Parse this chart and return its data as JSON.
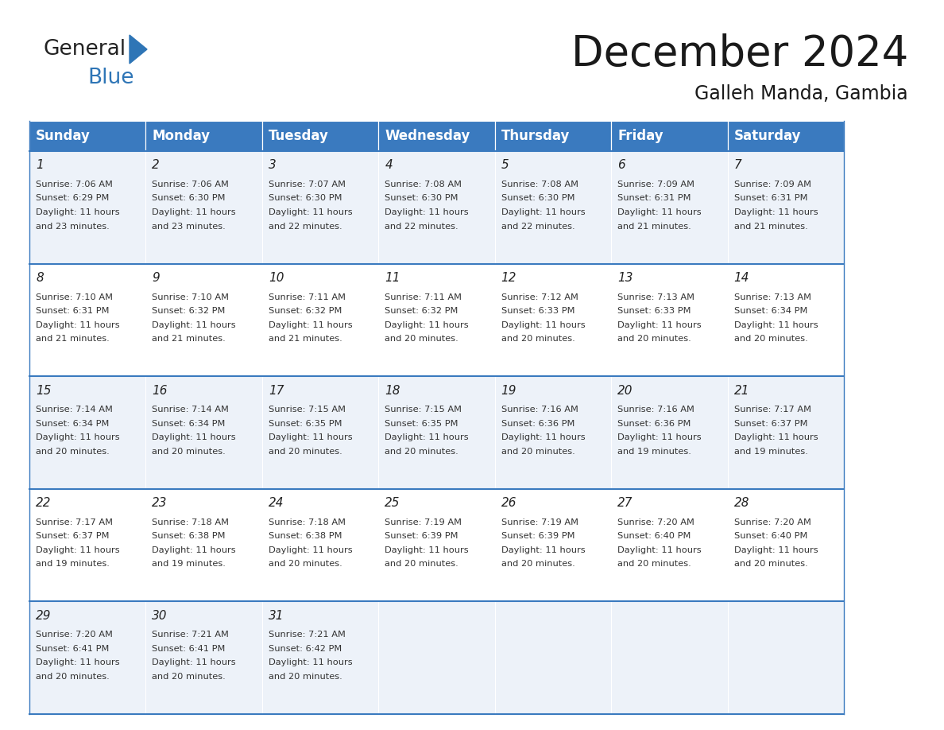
{
  "title": "December 2024",
  "subtitle": "Galleh Manda, Gambia",
  "header_color": "#3a7abf",
  "header_text_color": "#ffffff",
  "cell_bg_even": "#edf2f9",
  "cell_bg_odd": "#ffffff",
  "border_color": "#3a7abf",
  "text_color": "#333333",
  "day_names": [
    "Sunday",
    "Monday",
    "Tuesday",
    "Wednesday",
    "Thursday",
    "Friday",
    "Saturday"
  ],
  "weeks": [
    [
      {
        "day": 1,
        "sunrise": "7:06 AM",
        "sunset": "6:29 PM",
        "daylight": "11 hours and 23 minutes."
      },
      {
        "day": 2,
        "sunrise": "7:06 AM",
        "sunset": "6:30 PM",
        "daylight": "11 hours and 23 minutes."
      },
      {
        "day": 3,
        "sunrise": "7:07 AM",
        "sunset": "6:30 PM",
        "daylight": "11 hours and 22 minutes."
      },
      {
        "day": 4,
        "sunrise": "7:08 AM",
        "sunset": "6:30 PM",
        "daylight": "11 hours and 22 minutes."
      },
      {
        "day": 5,
        "sunrise": "7:08 AM",
        "sunset": "6:30 PM",
        "daylight": "11 hours and 22 minutes."
      },
      {
        "day": 6,
        "sunrise": "7:09 AM",
        "sunset": "6:31 PM",
        "daylight": "11 hours and 21 minutes."
      },
      {
        "day": 7,
        "sunrise": "7:09 AM",
        "sunset": "6:31 PM",
        "daylight": "11 hours and 21 minutes."
      }
    ],
    [
      {
        "day": 8,
        "sunrise": "7:10 AM",
        "sunset": "6:31 PM",
        "daylight": "11 hours and 21 minutes."
      },
      {
        "day": 9,
        "sunrise": "7:10 AM",
        "sunset": "6:32 PM",
        "daylight": "11 hours and 21 minutes."
      },
      {
        "day": 10,
        "sunrise": "7:11 AM",
        "sunset": "6:32 PM",
        "daylight": "11 hours and 21 minutes."
      },
      {
        "day": 11,
        "sunrise": "7:11 AM",
        "sunset": "6:32 PM",
        "daylight": "11 hours and 20 minutes."
      },
      {
        "day": 12,
        "sunrise": "7:12 AM",
        "sunset": "6:33 PM",
        "daylight": "11 hours and 20 minutes."
      },
      {
        "day": 13,
        "sunrise": "7:13 AM",
        "sunset": "6:33 PM",
        "daylight": "11 hours and 20 minutes."
      },
      {
        "day": 14,
        "sunrise": "7:13 AM",
        "sunset": "6:34 PM",
        "daylight": "11 hours and 20 minutes."
      }
    ],
    [
      {
        "day": 15,
        "sunrise": "7:14 AM",
        "sunset": "6:34 PM",
        "daylight": "11 hours and 20 minutes."
      },
      {
        "day": 16,
        "sunrise": "7:14 AM",
        "sunset": "6:34 PM",
        "daylight": "11 hours and 20 minutes."
      },
      {
        "day": 17,
        "sunrise": "7:15 AM",
        "sunset": "6:35 PM",
        "daylight": "11 hours and 20 minutes."
      },
      {
        "day": 18,
        "sunrise": "7:15 AM",
        "sunset": "6:35 PM",
        "daylight": "11 hours and 20 minutes."
      },
      {
        "day": 19,
        "sunrise": "7:16 AM",
        "sunset": "6:36 PM",
        "daylight": "11 hours and 20 minutes."
      },
      {
        "day": 20,
        "sunrise": "7:16 AM",
        "sunset": "6:36 PM",
        "daylight": "11 hours and 19 minutes."
      },
      {
        "day": 21,
        "sunrise": "7:17 AM",
        "sunset": "6:37 PM",
        "daylight": "11 hours and 19 minutes."
      }
    ],
    [
      {
        "day": 22,
        "sunrise": "7:17 AM",
        "sunset": "6:37 PM",
        "daylight": "11 hours and 19 minutes."
      },
      {
        "day": 23,
        "sunrise": "7:18 AM",
        "sunset": "6:38 PM",
        "daylight": "11 hours and 19 minutes."
      },
      {
        "day": 24,
        "sunrise": "7:18 AM",
        "sunset": "6:38 PM",
        "daylight": "11 hours and 20 minutes."
      },
      {
        "day": 25,
        "sunrise": "7:19 AM",
        "sunset": "6:39 PM",
        "daylight": "11 hours and 20 minutes."
      },
      {
        "day": 26,
        "sunrise": "7:19 AM",
        "sunset": "6:39 PM",
        "daylight": "11 hours and 20 minutes."
      },
      {
        "day": 27,
        "sunrise": "7:20 AM",
        "sunset": "6:40 PM",
        "daylight": "11 hours and 20 minutes."
      },
      {
        "day": 28,
        "sunrise": "7:20 AM",
        "sunset": "6:40 PM",
        "daylight": "11 hours and 20 minutes."
      }
    ],
    [
      {
        "day": 29,
        "sunrise": "7:20 AM",
        "sunset": "6:41 PM",
        "daylight": "11 hours and 20 minutes."
      },
      {
        "day": 30,
        "sunrise": "7:21 AM",
        "sunset": "6:41 PM",
        "daylight": "11 hours and 20 minutes."
      },
      {
        "day": 31,
        "sunrise": "7:21 AM",
        "sunset": "6:42 PM",
        "daylight": "11 hours and 20 minutes."
      },
      null,
      null,
      null,
      null
    ]
  ],
  "title_fontsize": 38,
  "subtitle_fontsize": 17,
  "header_fontsize": 12,
  "day_num_fontsize": 11,
  "cell_text_fontsize": 8.2,
  "logo_general_fontsize": 19,
  "logo_blue_fontsize": 19
}
